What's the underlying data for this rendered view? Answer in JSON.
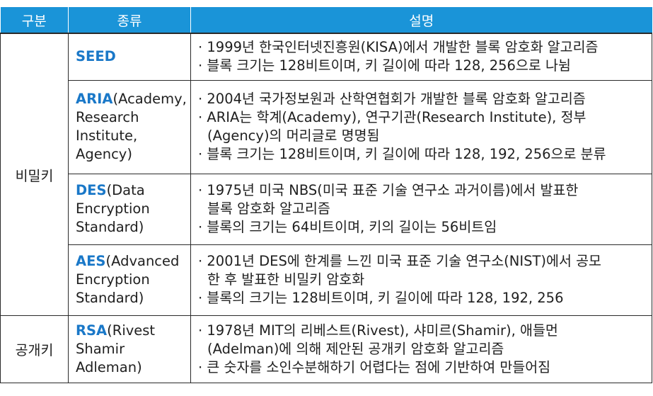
{
  "headers": {
    "category": "구분",
    "type": "종류",
    "description": "설명"
  },
  "groups": {
    "symmetric": "비밀키",
    "public": "공개키"
  },
  "rows": [
    {
      "name": "SEED",
      "name_rest_lines": [],
      "desc_lines": [
        "· 1999년 한국인터넷진흥원(KISA)에서 개발한 블록 암호화 알고리즘",
        "· 블록 크기는 128비트이며, 키 길이에 따라 128, 256으로 나뉨"
      ]
    },
    {
      "name": "ARIA",
      "name_rest_lines": [
        "(Academy,",
        "Research",
        "Institute,",
        "Agency)"
      ],
      "desc_lines": [
        "· 2004년 국가정보원과 산학연협회가 개발한 블록 암호화 알고리즘",
        "· ARIA는 학계(Academy), 연구기관(Research Institute), 정부",
        "(Agency)의 머리글로 명명됨",
        "· 블록 크기는 128비트이며, 키 길이에 따라 128, 192, 256으로 분류"
      ]
    },
    {
      "name": "DES",
      "name_rest_lines": [
        "(Data",
        "Encryption",
        "Standard)"
      ],
      "desc_lines": [
        "· 1975년 미국 NBS(미국 표준 기술 연구소 과거이름)에서 발표한",
        "블록 암호화 알고리즘",
        "· 블록의 크기는 64비트이며, 키의 길이는 56비트임"
      ]
    },
    {
      "name": "AES",
      "name_rest_lines": [
        "(Advanced",
        "Encryption",
        "Standard)"
      ],
      "desc_lines": [
        "· 2001년 DES에 한계를 느낀 미국 표준 기술 연구소(NIST)에서 공모",
        "한 후 발표한 비밀키 암호화",
        "· 블록의 크기는 128비트이며, 키 길이에 따라 128, 192, 256"
      ]
    },
    {
      "name": "RSA",
      "name_rest_lines": [
        "(Rivest",
        "Shamir",
        "Adleman)"
      ],
      "desc_lines": [
        "· 1978년 MIT의 리베스트(Rivest), 샤미르(Shamir), 애들먼",
        "(Adelman)에 의해 제안된 공개키 암호화 알고리즘",
        "· 큰 숫자를 소인수분해하기 어렵다는 점에 기반하여 만들어짐"
      ]
    }
  ],
  "colors": {
    "header_bg": "#1a94d8",
    "keyword": "#1a78c8",
    "border": "#2a2a2a"
  }
}
